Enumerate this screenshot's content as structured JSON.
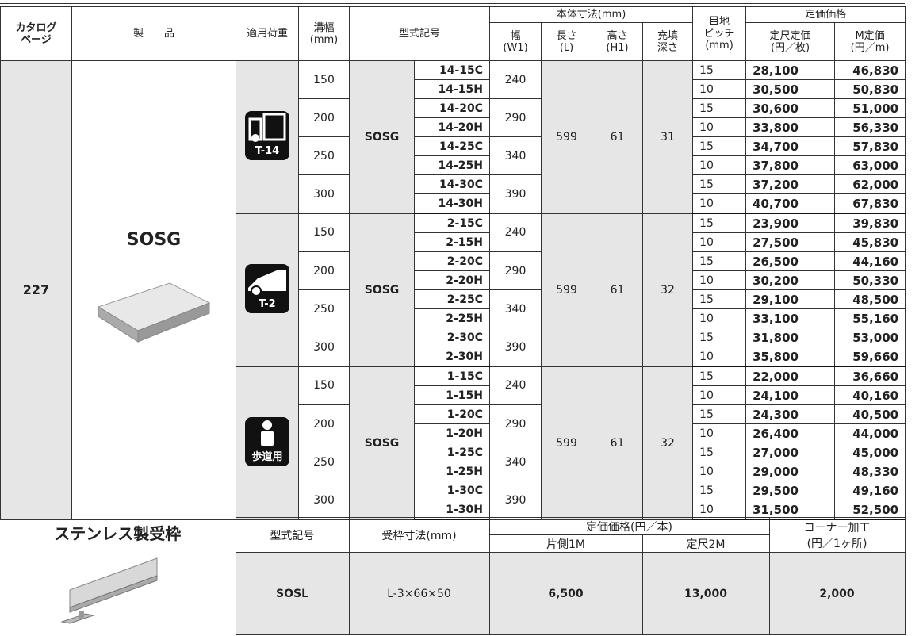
{
  "header": {
    "page": [
      "カタログ",
      "ページ"
    ],
    "product": "製　　品",
    "load": "適用荷重",
    "width": [
      "溝幅",
      "(mm)"
    ],
    "model": "型式記号",
    "body_dims": "本体寸法(mm)",
    "w1": [
      "幅",
      "(W1)"
    ],
    "length": [
      "長さ",
      "(L)"
    ],
    "height": [
      "高さ",
      "(H1)"
    ],
    "depth": [
      "充填",
      "深さ"
    ],
    "pitch": [
      "目地",
      "ピッチ",
      "(mm)"
    ],
    "price": "定価価格",
    "unit_price": [
      "定尺定価",
      "(円／枚)"
    ],
    "m_price": [
      "M定価",
      "(円／m)"
    ]
  },
  "body": {
    "page": "227",
    "product": "SOSG",
    "groups": [
      {
        "load": "T-14",
        "series": "SOSG",
        "length": "599",
        "height": "61",
        "depth": "31",
        "widths": [
          {
            "width": "150",
            "w1": "240",
            "rows": [
              {
                "code": "14-15C",
                "pitch": "15",
                "price": "28,100",
                "m_price": "46,830"
              },
              {
                "code": "14-15H",
                "pitch": "10",
                "price": "30,500",
                "m_price": "50,830"
              }
            ]
          },
          {
            "width": "200",
            "w1": "290",
            "rows": [
              {
                "code": "14-20C",
                "pitch": "15",
                "price": "30,600",
                "m_price": "51,000"
              },
              {
                "code": "14-20H",
                "pitch": "10",
                "price": "33,800",
                "m_price": "56,330"
              }
            ]
          },
          {
            "width": "250",
            "w1": "340",
            "rows": [
              {
                "code": "14-25C",
                "pitch": "15",
                "price": "34,700",
                "m_price": "57,830"
              },
              {
                "code": "14-25H",
                "pitch": "10",
                "price": "37,800",
                "m_price": "63,000"
              }
            ]
          },
          {
            "width": "300",
            "w1": "390",
            "rows": [
              {
                "code": "14-30C",
                "pitch": "15",
                "price": "37,200",
                "m_price": "62,000"
              },
              {
                "code": "14-30H",
                "pitch": "10",
                "price": "40,700",
                "m_price": "67,830"
              }
            ]
          }
        ]
      },
      {
        "load": "T-2",
        "series": "SOSG",
        "length": "599",
        "height": "61",
        "depth": "32",
        "widths": [
          {
            "width": "150",
            "w1": "240",
            "rows": [
              {
                "code": "2-15C",
                "pitch": "15",
                "price": "23,900",
                "m_price": "39,830"
              },
              {
                "code": "2-15H",
                "pitch": "10",
                "price": "27,500",
                "m_price": "45,830"
              }
            ]
          },
          {
            "width": "200",
            "w1": "290",
            "rows": [
              {
                "code": "2-20C",
                "pitch": "15",
                "price": "26,500",
                "m_price": "44,160"
              },
              {
                "code": "2-20H",
                "pitch": "10",
                "price": "30,200",
                "m_price": "50,330"
              }
            ]
          },
          {
            "width": "250",
            "w1": "340",
            "rows": [
              {
                "code": "2-25C",
                "pitch": "15",
                "price": "29,100",
                "m_price": "48,500"
              },
              {
                "code": "2-25H",
                "pitch": "10",
                "price": "33,100",
                "m_price": "55,160"
              }
            ]
          },
          {
            "width": "300",
            "w1": "390",
            "rows": [
              {
                "code": "2-30C",
                "pitch": "15",
                "price": "31,800",
                "m_price": "53,000"
              },
              {
                "code": "2-30H",
                "pitch": "10",
                "price": "35,800",
                "m_price": "59,660"
              }
            ]
          }
        ]
      },
      {
        "load": "歩道用",
        "series": "SOSG",
        "length": "599",
        "height": "61",
        "depth": "32",
        "widths": [
          {
            "width": "150",
            "w1": "240",
            "rows": [
              {
                "code": "1-15C",
                "pitch": "15",
                "price": "22,000",
                "m_price": "36,660"
              },
              {
                "code": "1-15H",
                "pitch": "10",
                "price": "24,100",
                "m_price": "40,160"
              }
            ]
          },
          {
            "width": "200",
            "w1": "290",
            "rows": [
              {
                "code": "1-20C",
                "pitch": "15",
                "price": "24,300",
                "m_price": "40,500"
              },
              {
                "code": "1-20H",
                "pitch": "10",
                "price": "26,400",
                "m_price": "44,000"
              }
            ]
          },
          {
            "width": "250",
            "w1": "340",
            "rows": [
              {
                "code": "1-25C",
                "pitch": "15",
                "price": "27,000",
                "m_price": "45,000"
              },
              {
                "code": "1-25H",
                "pitch": "10",
                "price": "29,000",
                "m_price": "48,330"
              }
            ]
          },
          {
            "width": "300",
            "w1": "390",
            "rows": [
              {
                "code": "1-30C",
                "pitch": "15",
                "price": "29,500",
                "m_price": "49,160"
              },
              {
                "code": "1-30H",
                "pitch": "10",
                "price": "31,500",
                "m_price": "52,500"
              }
            ]
          }
        ]
      }
    ]
  },
  "frame": {
    "title": "ステンレス製受枠",
    "header": {
      "model": "型式記号",
      "dims": "受枠寸法(mm)",
      "price": "定価価格(円／本)",
      "one_side": "片側1M",
      "standard": "定尺2M",
      "corner": [
        "コーナー加工",
        "(円／1ヶ所)"
      ]
    },
    "row": {
      "model": "SOSL",
      "dims": "L-3×66×50",
      "one_side": "6,500",
      "standard": "13,000",
      "corner": "2,000"
    }
  }
}
